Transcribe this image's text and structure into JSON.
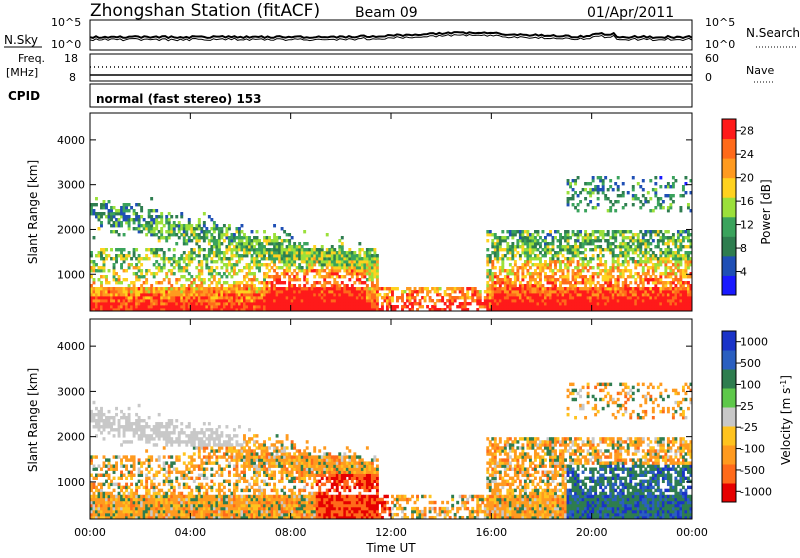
{
  "header": {
    "station": "Zhongshan Station (fitACF)",
    "beam": "Beam 09",
    "date": "01/Apr/2011"
  },
  "top_panel": {
    "left_label": "N.Sky",
    "right_label": "N.Search",
    "ticks_left": [
      "10^5",
      "10^0"
    ],
    "ticks_right": [
      "10^5",
      "10^0"
    ]
  },
  "freq_panel": {
    "left_label_line1": "Freq.",
    "left_label_line2": "[MHz]",
    "right_label": "Nave",
    "ticks_left": [
      "18",
      "8"
    ],
    "ticks_right": [
      "60",
      "0"
    ]
  },
  "cpid": {
    "label": "CPID",
    "mode_text": "normal (fast stereo) 153"
  },
  "colors": {
    "power": [
      "#1a1aff",
      "#1f4fb5",
      "#2e7d4f",
      "#3aa35c",
      "#9be03a",
      "#ffd21f",
      "#ff9a1f",
      "#ff6a1a",
      "#ff1a1a"
    ],
    "velocity": [
      "#1a33c8",
      "#2a5fc0",
      "#2e7d4f",
      "#5ec84a",
      "#c8c8c8",
      "#ffc31f",
      "#ff9a1f",
      "#ff6a1a",
      "#e60000"
    ]
  },
  "chart_data": [
    {
      "type": "heatmap",
      "ylabel": "Slant Range [km]",
      "xlabel": "Time UT",
      "y_ticks": [
        "1000",
        "2000",
        "3000",
        "4000"
      ],
      "x_ticks": [
        "00:00",
        "04:00",
        "08:00",
        "12:00",
        "16:00",
        "20:00",
        "00:00"
      ],
      "ylim": [
        180,
        4600
      ],
      "xlim_hours": [
        0,
        24
      ],
      "colorbar": {
        "label": "Power [dB]",
        "ticks": [
          "4",
          "8",
          "12",
          "16",
          "20",
          "24",
          "28"
        ],
        "range": [
          0,
          30
        ]
      }
    },
    {
      "type": "heatmap",
      "ylabel": "Slant Range [km]",
      "xlabel": "Time UT",
      "y_ticks": [
        "1000",
        "2000",
        "3000",
        "4000"
      ],
      "x_ticks": [
        "00:00",
        "04:00",
        "08:00",
        "12:00",
        "16:00",
        "20:00",
        "00:00"
      ],
      "ylim": [
        180,
        4600
      ],
      "xlim_hours": [
        0,
        24
      ],
      "colorbar": {
        "label": "Velocity [m s",
        "label_sup": "-1",
        "label_end": "]",
        "ticks": [
          "1000",
          "500",
          "100",
          "25",
          "-25",
          "-100",
          "-500",
          "-1000"
        ]
      }
    }
  ]
}
